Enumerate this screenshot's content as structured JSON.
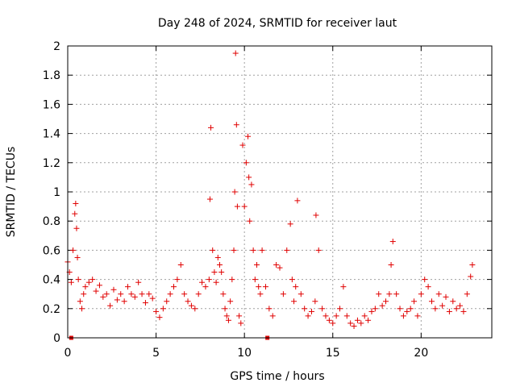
{
  "chart_data": {
    "type": "scatter",
    "title": "Day 248 of 2024, SRMTID for receiver laut",
    "xlabel": "GPS time / hours",
    "ylabel": "SRMTID / TECUs",
    "xlim": [
      0,
      24
    ],
    "ylim": [
      0,
      2
    ],
    "x_ticks": [
      0,
      5,
      10,
      15,
      20
    ],
    "x_tick_labels": [
      "0",
      "5",
      "10",
      "15",
      "20"
    ],
    "y_ticks": [
      0,
      0.2,
      0.4,
      0.6,
      0.8,
      1.0,
      1.2,
      1.4,
      1.6,
      1.8,
      2.0
    ],
    "y_tick_labels": [
      "0",
      "0.2",
      "0.4",
      "0.6",
      "0.8",
      "1",
      "1.2",
      "1.4",
      "1.6",
      "1.8",
      "2"
    ],
    "grid": true,
    "marker": "plus",
    "marker_color": "#e00000",
    "series": [
      {
        "name": "SRMTID",
        "x": [
          0.0,
          0.1,
          0.2,
          0.3,
          0.4,
          0.45,
          0.5,
          0.55,
          0.6,
          0.7,
          0.8,
          0.9,
          1.0,
          1.2,
          1.4,
          1.6,
          1.8,
          2.0,
          2.2,
          2.4,
          2.6,
          2.8,
          3.0,
          3.2,
          3.4,
          3.6,
          3.8,
          4.0,
          4.2,
          4.4,
          4.6,
          4.8,
          5.0,
          5.2,
          5.4,
          5.6,
          5.8,
          6.0,
          6.2,
          6.4,
          6.6,
          6.8,
          7.0,
          7.2,
          7.4,
          7.6,
          7.8,
          8.0,
          8.05,
          8.1,
          8.2,
          8.3,
          8.4,
          8.5,
          8.6,
          8.7,
          8.8,
          8.9,
          9.0,
          9.1,
          9.2,
          9.3,
          9.4,
          9.45,
          9.5,
          9.55,
          9.6,
          9.7,
          9.8,
          9.9,
          10.0,
          10.1,
          10.2,
          10.25,
          10.3,
          10.4,
          10.5,
          10.6,
          10.7,
          10.8,
          10.9,
          11.0,
          11.2,
          11.4,
          11.6,
          11.8,
          12.0,
          12.2,
          12.4,
          12.6,
          12.7,
          12.8,
          12.9,
          13.0,
          13.2,
          13.4,
          13.6,
          13.8,
          14.0,
          14.05,
          14.2,
          14.4,
          14.6,
          14.8,
          15.0,
          15.2,
          15.4,
          15.6,
          15.8,
          16.0,
          16.2,
          16.4,
          16.6,
          16.8,
          17.0,
          17.2,
          17.4,
          17.6,
          17.8,
          18.0,
          18.2,
          18.3,
          18.4,
          18.6,
          18.8,
          19.0,
          19.2,
          19.4,
          19.6,
          19.8,
          20.0,
          20.2,
          20.4,
          20.6,
          20.8,
          21.0,
          21.2,
          21.4,
          21.6,
          21.8,
          22.0,
          22.2,
          22.4,
          22.6,
          22.8,
          22.9
        ],
        "y": [
          0.52,
          0.45,
          0.38,
          0.6,
          0.85,
          0.92,
          0.75,
          0.55,
          0.4,
          0.25,
          0.2,
          0.3,
          0.35,
          0.38,
          0.4,
          0.32,
          0.36,
          0.28,
          0.3,
          0.22,
          0.33,
          0.26,
          0.3,
          0.25,
          0.35,
          0.3,
          0.28,
          0.38,
          0.3,
          0.24,
          0.3,
          0.27,
          0.18,
          0.14,
          0.2,
          0.25,
          0.3,
          0.35,
          0.4,
          0.5,
          0.3,
          0.25,
          0.22,
          0.2,
          0.3,
          0.38,
          0.35,
          0.4,
          0.95,
          1.44,
          0.6,
          0.45,
          0.38,
          0.55,
          0.5,
          0.45,
          0.3,
          0.2,
          0.15,
          0.12,
          0.25,
          0.4,
          0.6,
          1.0,
          1.95,
          1.46,
          0.9,
          0.15,
          0.1,
          1.32,
          0.9,
          1.2,
          1.38,
          1.1,
          0.8,
          1.05,
          0.6,
          0.4,
          0.5,
          0.35,
          0.3,
          0.6,
          0.35,
          0.2,
          0.15,
          0.5,
          0.48,
          0.3,
          0.6,
          0.78,
          0.4,
          0.25,
          0.35,
          0.94,
          0.3,
          0.2,
          0.15,
          0.18,
          0.25,
          0.84,
          0.6,
          0.2,
          0.15,
          0.12,
          0.1,
          0.15,
          0.2,
          0.35,
          0.15,
          0.1,
          0.08,
          0.12,
          0.1,
          0.15,
          0.12,
          0.18,
          0.2,
          0.3,
          0.22,
          0.25,
          0.3,
          0.5,
          0.66,
          0.3,
          0.2,
          0.15,
          0.18,
          0.2,
          0.25,
          0.15,
          0.3,
          0.4,
          0.35,
          0.25,
          0.2,
          0.3,
          0.22,
          0.28,
          0.18,
          0.25,
          0.2,
          0.22,
          0.18,
          0.3,
          0.42,
          0.5
        ],
        "zero_points_x": [
          0.2,
          11.3
        ]
      }
    ]
  }
}
